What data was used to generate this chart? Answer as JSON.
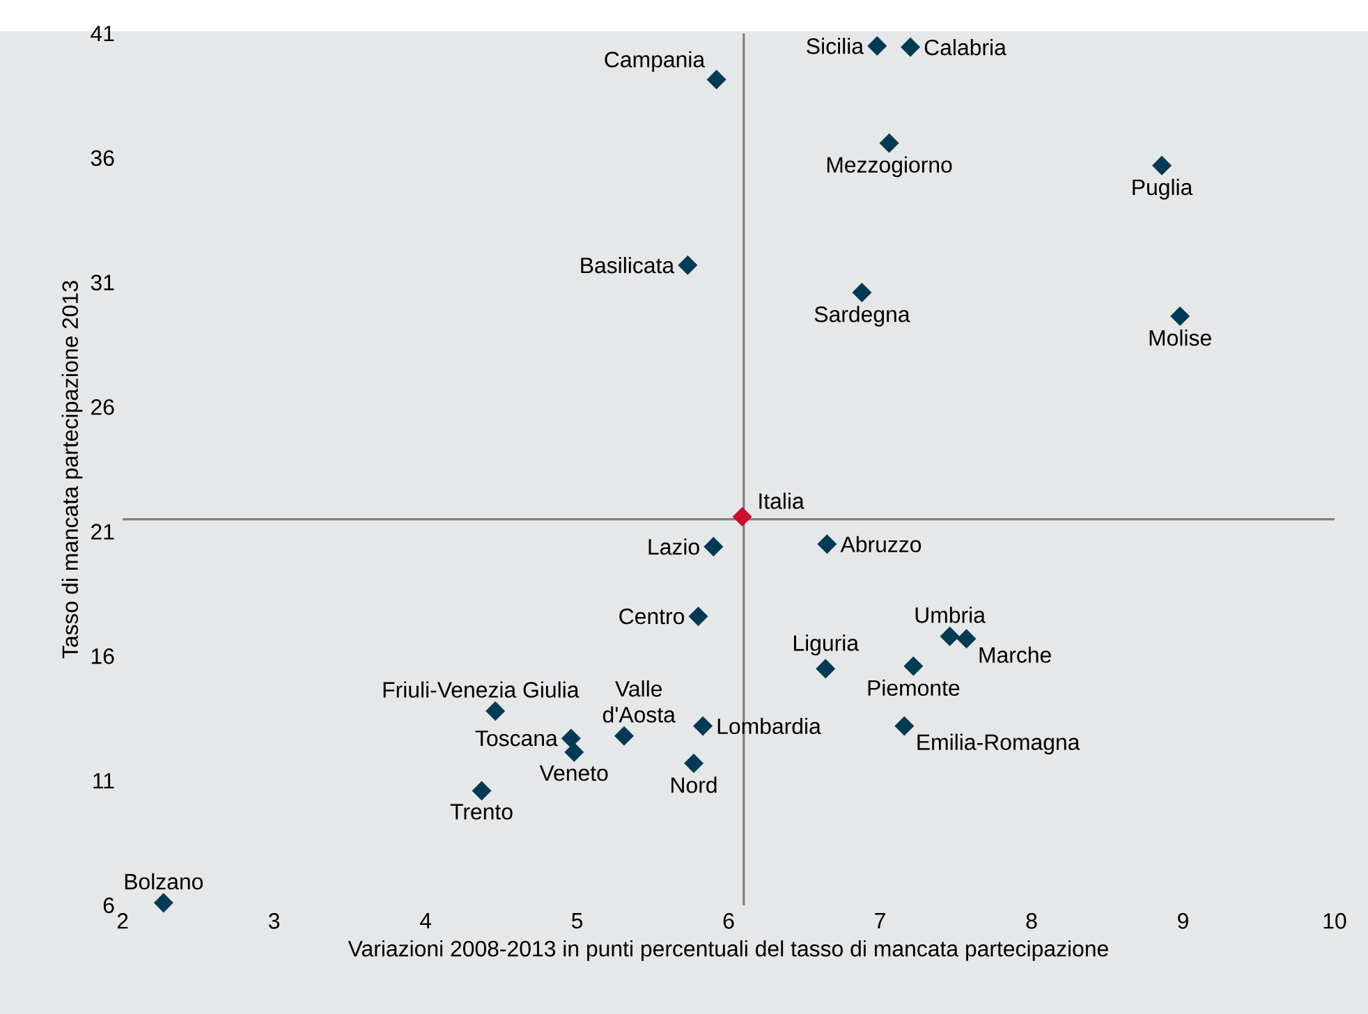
{
  "chart_data": {
    "type": "scatter",
    "xlabel": "Variazioni 2008-2013 in punti percentuali del tasso di mancata partecipazione",
    "ylabel": "Tasso di mancata partecipazione 2013",
    "xlim": [
      2,
      10
    ],
    "ylim": [
      6,
      41
    ],
    "xticks": [
      2,
      3,
      4,
      5,
      6,
      7,
      8,
      9,
      10
    ],
    "yticks": [
      6,
      11,
      16,
      21,
      26,
      31,
      36,
      41
    ],
    "marker": "diamond",
    "grid": false,
    "series": [
      {
        "color": "#003a54",
        "x": [
          6.98,
          7.2,
          5.92,
          7.06,
          8.86,
          5.73,
          6.88,
          8.98,
          5.9,
          6.65,
          5.8,
          7.46,
          7.57,
          6.64,
          7.22,
          4.46,
          4.96,
          4.98,
          5.31,
          5.83,
          7.16,
          5.77,
          4.37,
          2.27
        ],
        "values": [
          40.5,
          40.45,
          39.15,
          36.6,
          35.7,
          31.7,
          30.6,
          29.65,
          20.4,
          20.5,
          17.6,
          16.8,
          16.7,
          15.5,
          15.6,
          13.8,
          12.7,
          12.15,
          12.8,
          13.2,
          13.2,
          11.7,
          10.6,
          6.1
        ]
      },
      {
        "color": "#c8102e",
        "x": [
          6.09
        ],
        "values": [
          21.6
        ]
      }
    ],
    "annotations": [
      {
        "text": "Sicilia",
        "x": 6.98,
        "y": 40.5
      },
      {
        "text": "Calabria",
        "x": 7.2,
        "y": 40.45
      },
      {
        "text": "Campania",
        "x": 5.92,
        "y": 39.15
      },
      {
        "text": "Mezzogiorno",
        "x": 7.06,
        "y": 36.6
      },
      {
        "text": "Puglia",
        "x": 8.86,
        "y": 35.7
      },
      {
        "text": "Basilicata",
        "x": 5.73,
        "y": 31.7
      },
      {
        "text": "Sardegna",
        "x": 6.88,
        "y": 30.6
      },
      {
        "text": "Molise",
        "x": 8.98,
        "y": 29.65
      },
      {
        "text": "Lazio",
        "x": 5.9,
        "y": 20.4
      },
      {
        "text": "Abruzzo",
        "x": 6.65,
        "y": 20.5
      },
      {
        "text": "Centro",
        "x": 5.8,
        "y": 17.6
      },
      {
        "text": "Umbria",
        "x": 7.46,
        "y": 16.8
      },
      {
        "text": "Marche",
        "x": 7.57,
        "y": 16.7
      },
      {
        "text": "Liguria",
        "x": 6.64,
        "y": 15.5
      },
      {
        "text": "Piemonte",
        "x": 7.22,
        "y": 15.6
      },
      {
        "text": "Friuli-Venezia Giulia",
        "x": 4.46,
        "y": 13.8
      },
      {
        "text": "Toscana",
        "x": 4.96,
        "y": 12.7
      },
      {
        "text": "Veneto",
        "x": 4.98,
        "y": 12.15
      },
      {
        "text": "Valle d'Aosta",
        "x": 5.31,
        "y": 12.8
      },
      {
        "text": "Lombardia",
        "x": 5.83,
        "y": 13.2
      },
      {
        "text": "Emilia-Romagna",
        "x": 7.16,
        "y": 13.2
      },
      {
        "text": "Nord",
        "x": 5.77,
        "y": 11.7
      },
      {
        "text": "Trento",
        "x": 4.37,
        "y": 10.6
      },
      {
        "text": "Bolzano",
        "x": 2.27,
        "y": 6.1
      },
      {
        "text": "Italia",
        "x": 6.09,
        "y": 21.6
      }
    ],
    "ref_lines": [
      {
        "axis": "x",
        "value": 6.1,
        "color": "#808080"
      },
      {
        "axis": "y",
        "value": 21.5,
        "color": "#808080"
      }
    ]
  }
}
